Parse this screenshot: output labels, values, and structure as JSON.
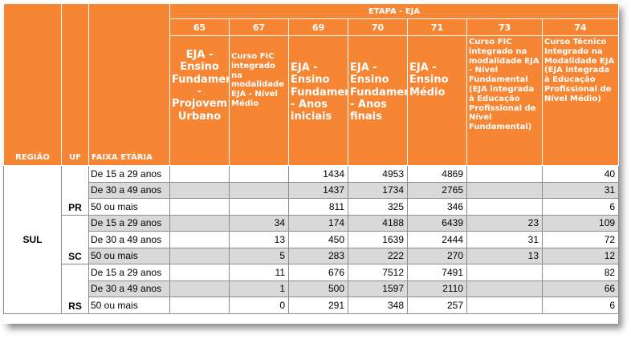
{
  "header": {
    "etapa": "ETAPA - EJA",
    "regiao_label": "REGIÃO",
    "uf_label": "UF",
    "faixa_label": "FAIXA ETÁRIA",
    "columns": [
      {
        "code": "65",
        "desc": "EJA - Ensino Fundamental - Projovem Urbano"
      },
      {
        "code": "67",
        "desc": "Curso FIC integrado na modalidade EJA - Nível Médio"
      },
      {
        "code": "69",
        "desc": "EJA - Ensino Fundamental - Anos iniciais"
      },
      {
        "code": "70",
        "desc": "EJA - Ensino Fundamental - Anos finais"
      },
      {
        "code": "71",
        "desc": "EJA - Ensino Médio"
      },
      {
        "code": "73",
        "desc": "Curso FIC integrado na modalidade EJA - Nível Fundamental (EJA integrada à Educação Profissional de Nível Fundamental)"
      },
      {
        "code": "74",
        "desc": "Curso Técnico Integrado na Modalidade EJA (EJA integrada à Educação Profissional de Nível Médio)"
      }
    ]
  },
  "region": "SUL",
  "states": [
    {
      "uf": "PR",
      "rows": [
        {
          "faixa": "De 15 a 29 anos",
          "v": [
            "",
            "",
            "1434",
            "4953",
            "4869",
            "",
            "40"
          ]
        },
        {
          "faixa": "De 30 a 49 anos",
          "v": [
            "",
            "",
            "1437",
            "1734",
            "2765",
            "",
            "31"
          ]
        },
        {
          "faixa": "50 ou mais",
          "v": [
            "",
            "",
            "811",
            "325",
            "346",
            "",
            "6"
          ]
        }
      ]
    },
    {
      "uf": "SC",
      "rows": [
        {
          "faixa": "De 15 a 29 anos",
          "v": [
            "",
            "34",
            "174",
            "4188",
            "6439",
            "23",
            "109"
          ]
        },
        {
          "faixa": "De 30 a 49 anos",
          "v": [
            "",
            "13",
            "450",
            "1639",
            "2444",
            "31",
            "72"
          ]
        },
        {
          "faixa": "50 ou mais",
          "v": [
            "",
            "5",
            "283",
            "222",
            "270",
            "13",
            "12"
          ]
        }
      ]
    },
    {
      "uf": "RS",
      "rows": [
        {
          "faixa": "De 15 a 29 anos",
          "v": [
            "",
            "11",
            "676",
            "7512",
            "7491",
            "",
            "82"
          ]
        },
        {
          "faixa": "De 30 a 49 anos",
          "v": [
            "",
            "1",
            "500",
            "1597",
            "2110",
            "",
            "66"
          ]
        },
        {
          "faixa": "50 ou mais",
          "v": [
            "",
            "0",
            "291",
            "348",
            "257",
            "",
            "6"
          ]
        }
      ]
    }
  ]
}
